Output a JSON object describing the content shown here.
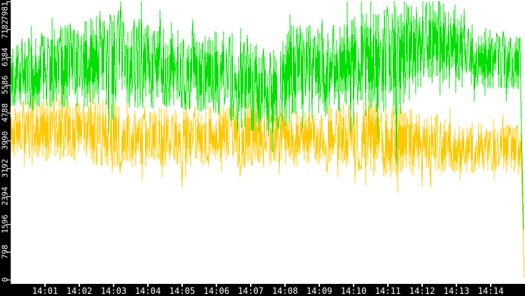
{
  "chart": {
    "title": "",
    "legend": "none"
  },
  "chart_data": {
    "type": "line",
    "title": "",
    "grid": false,
    "legend_position": "none",
    "plot_bg": "#ffffff",
    "axis_bg": "#000000",
    "axis_text_color": "#ffffff",
    "x_axis": {
      "start_time": "14:00",
      "end_time": "14:15",
      "minutes_span": 15,
      "tick_labels": [
        "14:01",
        "14:02",
        "14:03",
        "14:04",
        "14:05",
        "14:06",
        "14:07",
        "14:08",
        "14:09",
        "14:10",
        "14:11",
        "14:12",
        "14:13",
        "14:14"
      ]
    },
    "y_axis": {
      "min": 0,
      "max": 7981,
      "tick_values": [
        0,
        798,
        1596,
        2394,
        3192,
        3990,
        4788,
        5586,
        6384,
        7182,
        7981
      ],
      "tick_labels": [
        "0",
        "798",
        "1596",
        "2394",
        "3192",
        "3990",
        "4788",
        "5586",
        "6384",
        "7182",
        "7981"
      ]
    },
    "series": [
      {
        "name": "series-yellow",
        "color": "#ffc800",
        "representation": "noise-envelope (mean value and +/- amplitude vs. time in minutes after 14:00)",
        "envelope": [
          {
            "t": 0.0,
            "mean": 4300,
            "amp": 800
          },
          {
            "t": 1.0,
            "mean": 4300,
            "amp": 900
          },
          {
            "t": 2.0,
            "mean": 4200,
            "amp": 900
          },
          {
            "t": 3.0,
            "mean": 4200,
            "amp": 1000
          },
          {
            "t": 4.0,
            "mean": 4100,
            "amp": 900
          },
          {
            "t": 5.0,
            "mean": 4050,
            "amp": 850
          },
          {
            "t": 6.0,
            "mean": 4100,
            "amp": 900
          },
          {
            "t": 7.0,
            "mean": 4150,
            "amp": 950
          },
          {
            "t": 8.0,
            "mean": 4100,
            "amp": 900
          },
          {
            "t": 9.0,
            "mean": 4100,
            "amp": 900
          },
          {
            "t": 10.0,
            "mean": 4150,
            "amp": 950
          },
          {
            "t": 11.0,
            "mean": 4000,
            "amp": 1100
          },
          {
            "t": 12.0,
            "mean": 3900,
            "amp": 900
          },
          {
            "t": 13.0,
            "mean": 3800,
            "amp": 750
          },
          {
            "t": 14.0,
            "mean": 3800,
            "amp": 700
          },
          {
            "t": 14.9,
            "mean": 3750,
            "amp": 700
          }
        ],
        "spikes": [
          {
            "t": 0.35,
            "value": 5100
          },
          {
            "t": 5.0,
            "value": 2650
          },
          {
            "t": 10.35,
            "value": 2700
          },
          {
            "t": 11.3,
            "value": 2500
          }
        ],
        "final_drop": {
          "t": 14.97,
          "value": 60
        }
      },
      {
        "name": "series-green",
        "color": "#00e000",
        "representation": "noise-envelope (mean value and +/- amplitude vs. time in minutes after 14:00)",
        "envelope": [
          {
            "t": 0.0,
            "mean": 5750,
            "amp": 1050
          },
          {
            "t": 0.7,
            "mean": 5950,
            "amp": 1150
          },
          {
            "t": 1.5,
            "mean": 6100,
            "amp": 1200
          },
          {
            "t": 2.3,
            "mean": 6200,
            "amp": 1350
          },
          {
            "t": 3.2,
            "mean": 6300,
            "amp": 1500
          },
          {
            "t": 4.0,
            "mean": 6150,
            "amp": 1250
          },
          {
            "t": 5.0,
            "mean": 6000,
            "amp": 1150
          },
          {
            "t": 6.0,
            "mean": 5950,
            "amp": 1200
          },
          {
            "t": 6.8,
            "mean": 5700,
            "amp": 1400
          },
          {
            "t": 7.5,
            "mean": 5350,
            "amp": 1250
          },
          {
            "t": 8.1,
            "mean": 5900,
            "amp": 1500
          },
          {
            "t": 8.6,
            "mean": 6250,
            "amp": 1300
          },
          {
            "t": 9.2,
            "mean": 5850,
            "amp": 1200
          },
          {
            "t": 10.0,
            "mean": 6200,
            "amp": 1400
          },
          {
            "t": 10.7,
            "mean": 6150,
            "amp": 1600
          },
          {
            "t": 11.2,
            "mean": 6350,
            "amp": 1650
          },
          {
            "t": 11.8,
            "mean": 6650,
            "amp": 1350
          },
          {
            "t": 12.4,
            "mean": 6800,
            "amp": 1400
          },
          {
            "t": 13.0,
            "mean": 6550,
            "amp": 1200
          },
          {
            "t": 13.6,
            "mean": 6350,
            "amp": 900
          },
          {
            "t": 14.3,
            "mean": 6300,
            "amp": 850
          },
          {
            "t": 14.9,
            "mean": 6250,
            "amp": 900
          }
        ],
        "spikes": [
          {
            "t": 2.6,
            "value": 7700
          },
          {
            "t": 3.2,
            "value": 7981
          },
          {
            "t": 8.15,
            "value": 7600
          },
          {
            "t": 11.25,
            "value": 3300
          },
          {
            "t": 12.1,
            "value": 7800
          },
          {
            "t": 12.35,
            "value": 7700
          }
        ],
        "final_drop": {
          "t": 14.95,
          "value": 1430
        }
      }
    ]
  }
}
